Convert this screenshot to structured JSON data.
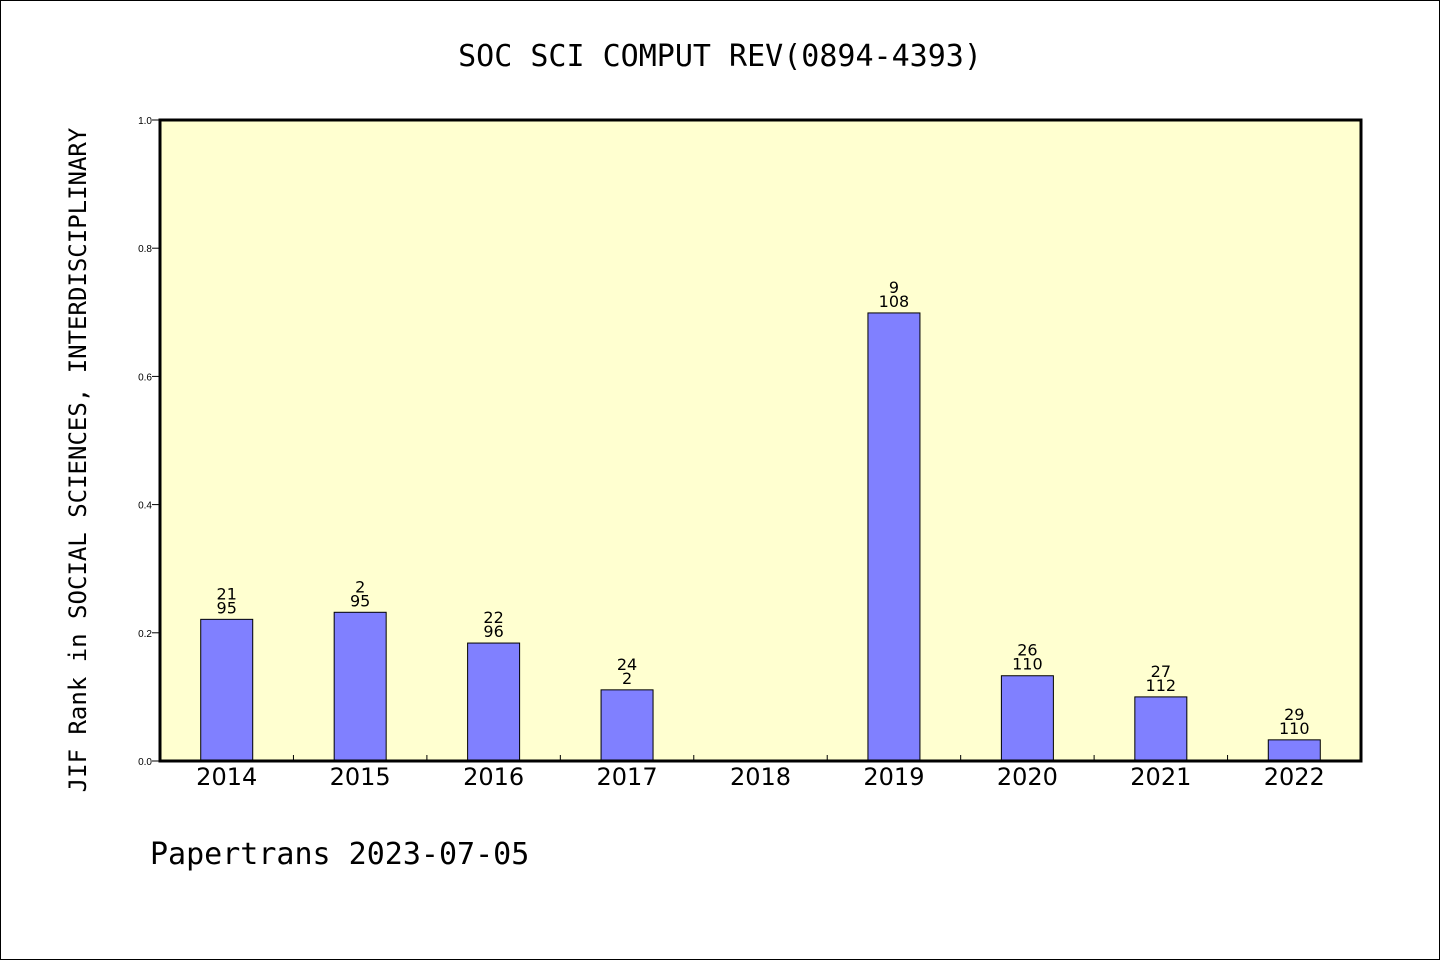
{
  "chart_data": {
    "type": "bar",
    "title": "SOC SCI COMPUT REV(0894-4393)",
    "ylabel": "JIF Rank in SOCIAL SCIENCES, INTERDISCIPLINARY",
    "xlabel": "",
    "categories": [
      "2014",
      "2015",
      "2016",
      "2017",
      "2018",
      "2019",
      "2020",
      "2021",
      "2022"
    ],
    "values": [
      0.221,
      0.232,
      0.184,
      0.111,
      null,
      0.699,
      0.133,
      0.1,
      0.033
    ],
    "rank_labels": [
      "21",
      "2",
      "22",
      "24",
      "",
      "9",
      "26",
      "27",
      "29"
    ],
    "total_labels": [
      "95",
      "95",
      "96",
      "2",
      "",
      "108",
      "110",
      "112",
      "110"
    ],
    "ylim": [
      0,
      1.0
    ],
    "yticks": [
      "0.0",
      "0.2",
      "0.4",
      "0.6",
      "0.8",
      "1.0"
    ],
    "grid": false,
    "colors": {
      "bar": "#8080ff",
      "plot_background": "#ffffd0"
    }
  },
  "footer": "Papertrans 2023-07-05"
}
